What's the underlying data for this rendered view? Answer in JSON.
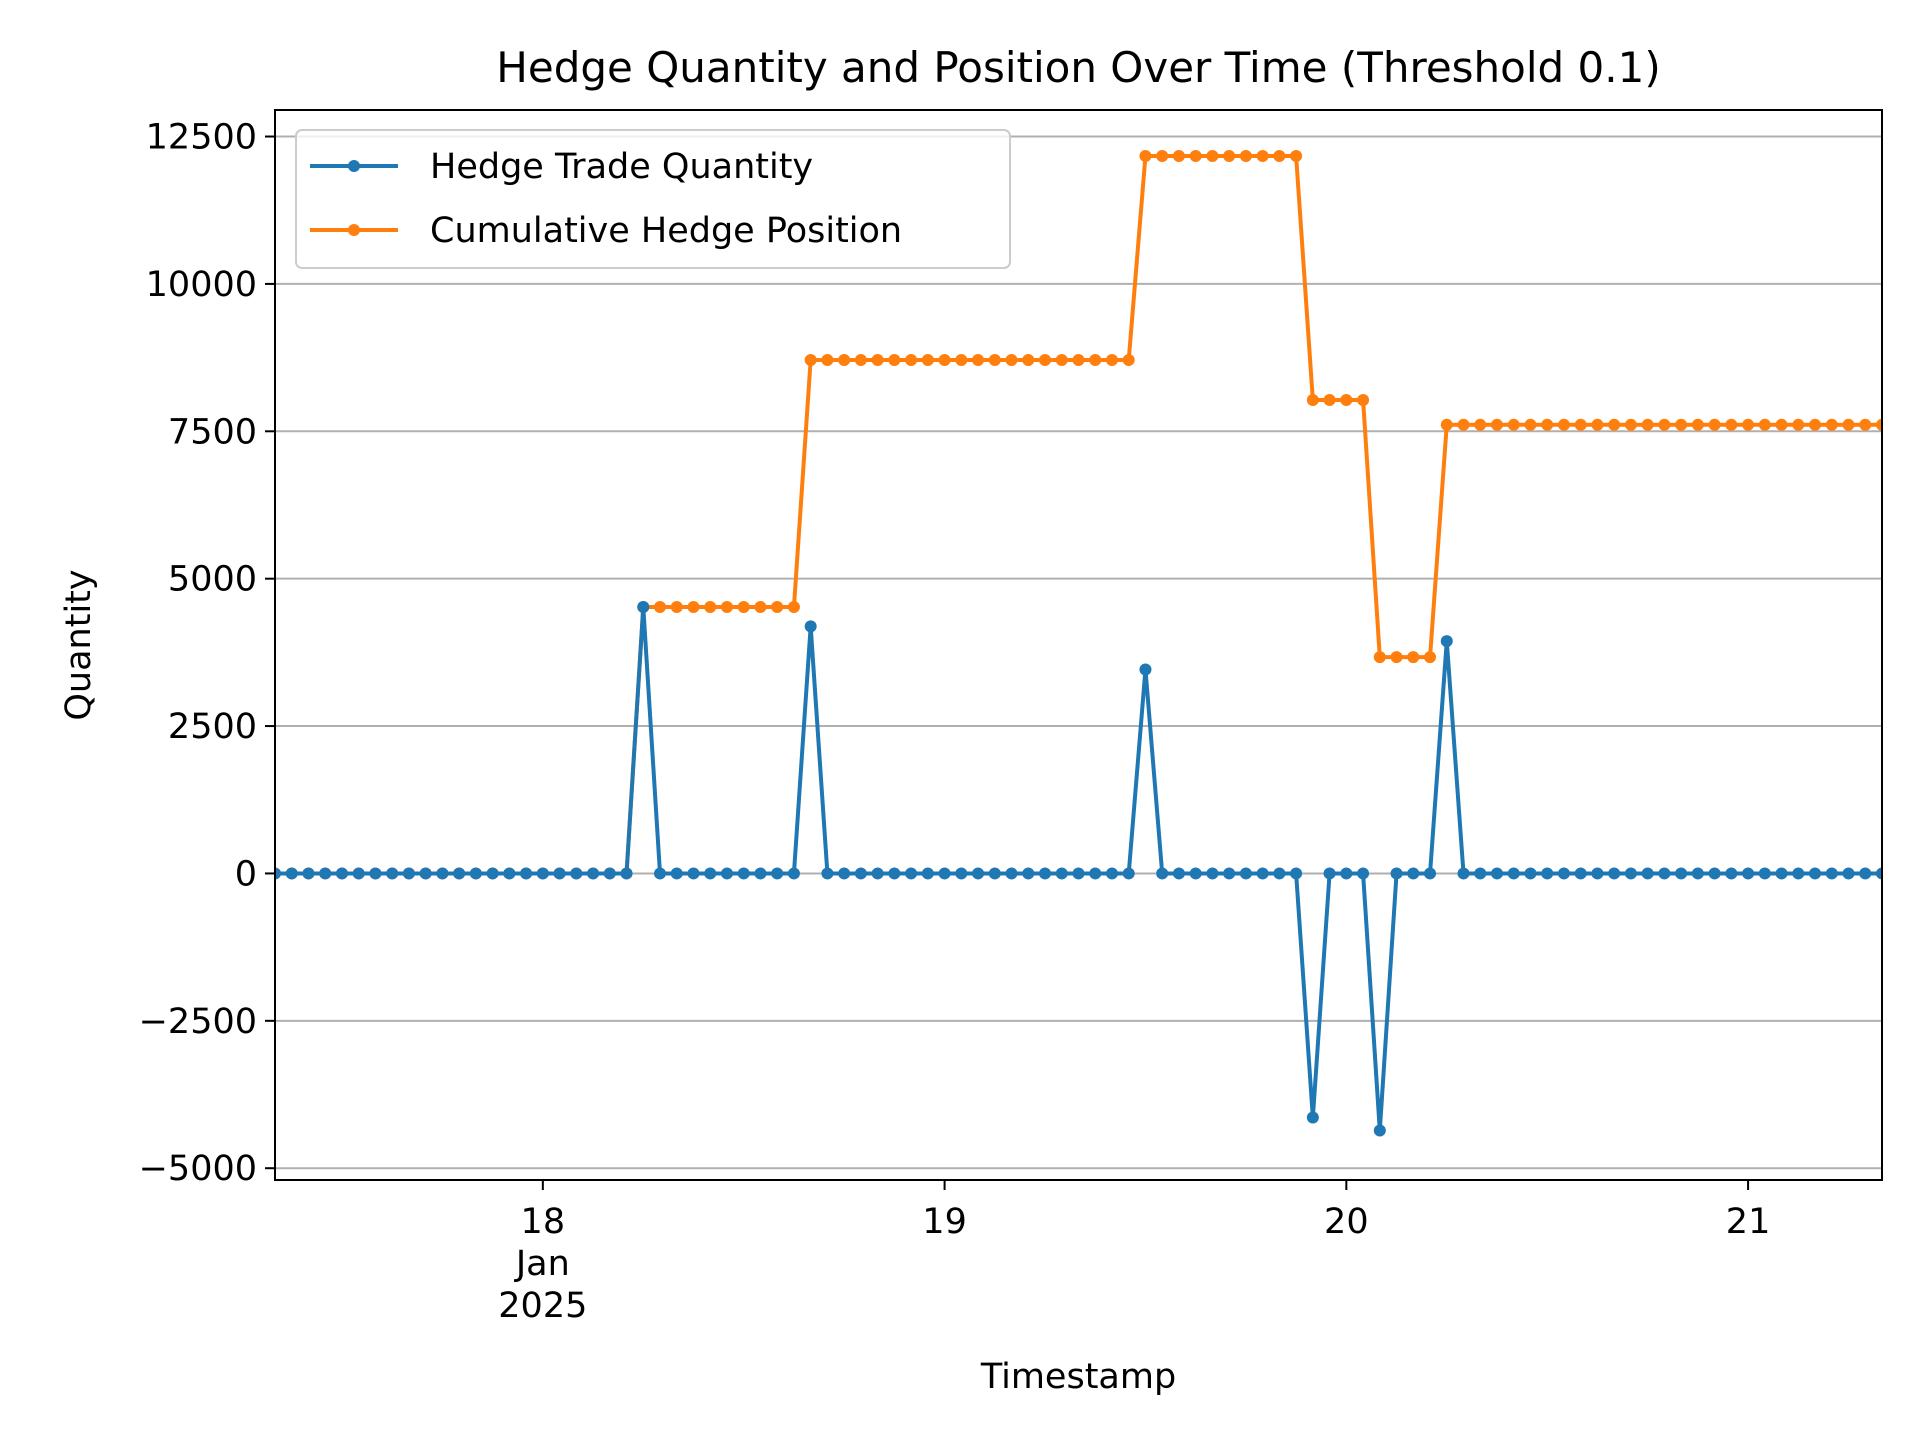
{
  "chart_data": {
    "type": "line",
    "title": "Hedge Quantity and Position Over Time (Threshold 0.1)",
    "xlabel": "Timestamp",
    "ylabel": "Quantity",
    "x_unit": "2025-01 (day of month)",
    "x_start": 17.33333,
    "x_step": 0.04166667,
    "xlim": [
      17.33333,
      21.33333
    ],
    "ylim": [
      -5200,
      12950
    ],
    "grid": "y",
    "legend_position": "upper-left",
    "x_ticks": [
      {
        "value": 18,
        "label": [
          "18",
          "Jan",
          "2025"
        ]
      },
      {
        "value": 19,
        "label": [
          "19"
        ]
      },
      {
        "value": 20,
        "label": [
          "20"
        ]
      },
      {
        "value": 21,
        "label": [
          "21"
        ]
      }
    ],
    "y_ticks": [
      {
        "value": 12500,
        "label": "12500"
      },
      {
        "value": 10000,
        "label": "10000"
      },
      {
        "value": 7500,
        "label": "7500"
      },
      {
        "value": 5000,
        "label": "5000"
      },
      {
        "value": 2500,
        "label": "2500"
      },
      {
        "value": 0,
        "label": "0"
      },
      {
        "value": -2500,
        "label": "−2500"
      },
      {
        "value": -5000,
        "label": "−5000"
      }
    ],
    "series": [
      {
        "name": "Hedge Trade Quantity",
        "color": "#1f77b4",
        "values": [
          0,
          0,
          0,
          0,
          0,
          0,
          0,
          0,
          0,
          0,
          0,
          0,
          0,
          0,
          0,
          0,
          0,
          0,
          0,
          0,
          0,
          0,
          4520,
          0,
          0,
          0,
          0,
          0,
          0,
          0,
          0,
          0,
          4190,
          0,
          0,
          0,
          0,
          0,
          0,
          0,
          0,
          0,
          0,
          0,
          0,
          0,
          0,
          0,
          0,
          0,
          0,
          0,
          3460,
          0,
          0,
          0,
          0,
          0,
          0,
          0,
          0,
          0,
          -4140,
          0,
          0,
          0,
          -4360,
          0,
          0,
          0,
          3940,
          0,
          0,
          0,
          0,
          0,
          0,
          0,
          0,
          0,
          0,
          0,
          0,
          0,
          0,
          0,
          0,
          0,
          0,
          0,
          0,
          0,
          0,
          0,
          0,
          0,
          0
        ]
      },
      {
        "name": "Cumulative Hedge Position",
        "color": "#ff7f0e",
        "values": [
          0,
          0,
          0,
          0,
          0,
          0,
          0,
          0,
          0,
          0,
          0,
          0,
          0,
          0,
          0,
          0,
          0,
          0,
          0,
          0,
          0,
          0,
          4520,
          4520,
          4520,
          4520,
          4520,
          4520,
          4520,
          4520,
          4520,
          4520,
          8710,
          8710,
          8710,
          8710,
          8710,
          8710,
          8710,
          8710,
          8710,
          8710,
          8710,
          8710,
          8710,
          8710,
          8710,
          8710,
          8710,
          8710,
          8710,
          8710,
          12170,
          12170,
          12170,
          12170,
          12170,
          12170,
          12170,
          12170,
          12170,
          12170,
          8030,
          8030,
          8030,
          8030,
          3670,
          3670,
          3670,
          3670,
          7610,
          7610,
          7610,
          7610,
          7610,
          7610,
          7610,
          7610,
          7610,
          7610,
          7610,
          7610,
          7610,
          7610,
          7610,
          7610,
          7610,
          7610,
          7610,
          7610,
          7610,
          7610,
          7610,
          7610,
          7610,
          7610,
          7610
        ]
      }
    ]
  }
}
